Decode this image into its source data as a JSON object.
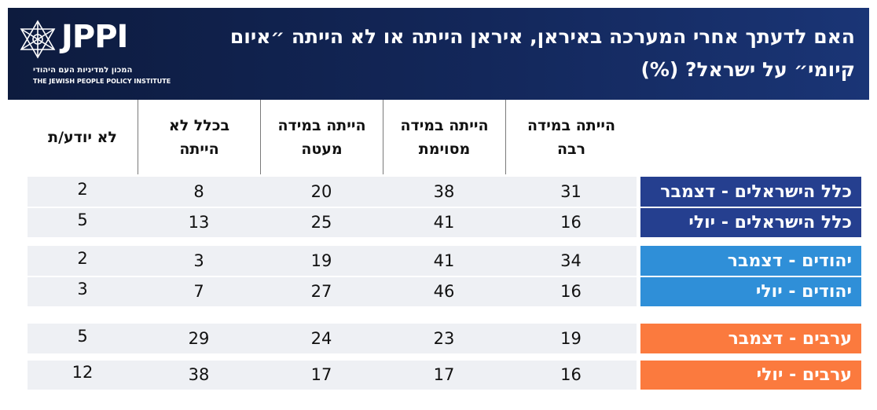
{
  "header": {
    "title": "האם לדעתך אחרי המערכה באיראן, איראן הייתה או לא הייתה ״איום קיומי״ על ישראל? (%)",
    "logo": {
      "wordmark": "JPPI",
      "hebrew_line": "המכון למדיניות העם היהודי",
      "english_line": "THE JEWISH PEOPLE POLICY INSTITUTE"
    }
  },
  "colors": {
    "header_bg": "#13275a",
    "israelis": "#253f8f",
    "jews": "#2f8fd8",
    "arabs": "#fb7a3e",
    "row_bg": "#eef0f4"
  },
  "chart_data": {
    "type": "table",
    "title": "האם לדעתך אחרי המערכה באיראן, איראן הייתה או לא הייתה ״איום קיומי״ על ישראל? (%)",
    "columns": [
      "הייתה במידה רבה",
      "הייתה במידה מסוימת",
      "הייתה במידה מעטה",
      "בכלל לא הייתה",
      "לא יודע/ת"
    ],
    "rows": [
      {
        "label": "כלל הישראלים - דצמבר",
        "group": "israelis",
        "values": [
          31,
          38,
          20,
          8,
          2
        ]
      },
      {
        "label": "כלל הישראלים - יולי",
        "group": "israelis",
        "values": [
          16,
          41,
          25,
          13,
          5
        ]
      },
      {
        "label": "יהודים - דצמבר",
        "group": "jews",
        "values": [
          34,
          41,
          19,
          3,
          2
        ]
      },
      {
        "label": "יהודים - יולי",
        "group": "jews",
        "values": [
          16,
          46,
          27,
          7,
          3
        ]
      },
      {
        "label": "ערבים - דצמבר",
        "group": "arabs",
        "values": [
          19,
          23,
          24,
          29,
          5
        ]
      },
      {
        "label": "ערבים - יולי",
        "group": "arabs",
        "values": [
          16,
          17,
          17,
          38,
          12
        ]
      }
    ]
  }
}
